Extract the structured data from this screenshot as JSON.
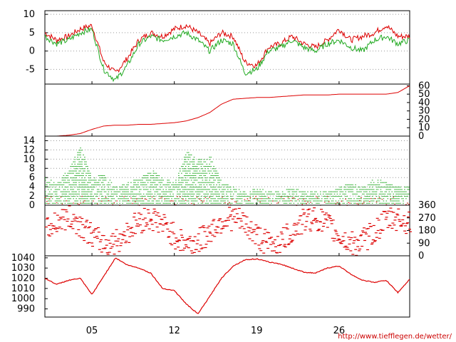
{
  "source_url": "http://www.tiefflegen.de/wetter/",
  "colors": {
    "red": "#dd0000",
    "green": "#22aa22",
    "grid": "#999999",
    "axis": "#000000"
  },
  "chart_data": [
    {
      "type": "line",
      "x_days": [
        0,
        1,
        2,
        3,
        4,
        5,
        6,
        7,
        8,
        9,
        10,
        11,
        12,
        13,
        14,
        15,
        16,
        17,
        18,
        19,
        20,
        21,
        22,
        23,
        24,
        25,
        26,
        27,
        28,
        29,
        30,
        31
      ],
      "ylim": [
        -9,
        11
      ],
      "yticks": [
        "10",
        "5",
        "0",
        "-5"
      ],
      "series": [
        {
          "color": "red",
          "values": [
            5,
            3,
            4,
            6,
            7,
            -3,
            -6,
            -2,
            3,
            5,
            4,
            6,
            7,
            5,
            2,
            5,
            4,
            -3,
            -4,
            1,
            2,
            4,
            2,
            1,
            3,
            6,
            3,
            4,
            5,
            7,
            4,
            4
          ]
        },
        {
          "color": "green",
          "values": [
            4,
            2,
            3,
            5,
            6,
            -5,
            -8,
            -4,
            2,
            4,
            3,
            4,
            5,
            3,
            0,
            3,
            2,
            -6,
            -5,
            0,
            1,
            3,
            1,
            0,
            2,
            3,
            1,
            0,
            3,
            4,
            2,
            3
          ]
        }
      ]
    },
    {
      "type": "area",
      "ylim": [
        0,
        62
      ],
      "yticks": [
        "60",
        "50",
        "40",
        "30",
        "20",
        "10",
        "0"
      ],
      "series": [
        {
          "color": "red",
          "values": [
            0,
            0,
            1,
            3,
            8,
            12,
            13,
            13,
            14,
            14,
            15,
            16,
            18,
            22,
            28,
            38,
            44,
            45,
            46,
            46,
            47,
            48,
            49,
            49,
            49,
            50,
            50,
            50,
            50,
            50,
            52,
            60
          ]
        }
      ]
    },
    {
      "type": "scatter",
      "ylim": [
        0,
        15
      ],
      "yticks": [
        "14",
        "12",
        "10",
        "8",
        "6",
        "4",
        "2",
        "0"
      ],
      "series": [
        {
          "color": "green",
          "name": "",
          "peaks": [
            6,
            5,
            8,
            13,
            6,
            7,
            4,
            5,
            6,
            8,
            6,
            5,
            12,
            10,
            11,
            5,
            4,
            3,
            4,
            3,
            3,
            4,
            3,
            3,
            3,
            4,
            5,
            4,
            6,
            5,
            4,
            4
          ]
        }
      ]
    },
    {
      "type": "scatter",
      "ylim": [
        0,
        360
      ],
      "yticks": [
        "360",
        "270",
        "180",
        "90",
        "0"
      ],
      "series": [
        {
          "color": "red"
        }
      ]
    },
    {
      "type": "line",
      "ylim": [
        982,
        1042
      ],
      "yticks": [
        "1040",
        "1030",
        "1020",
        "1010",
        "1000",
        "990"
      ],
      "xticks": [
        "05",
        "12",
        "19",
        "26"
      ],
      "xtick_days": [
        4,
        11,
        18,
        25
      ],
      "series": [
        {
          "color": "red",
          "values": [
            1020,
            1014,
            1018,
            1020,
            1004,
            1022,
            1040,
            1033,
            1030,
            1025,
            1010,
            1008,
            995,
            985,
            1002,
            1020,
            1032,
            1038,
            1039,
            1036,
            1034,
            1030,
            1026,
            1025,
            1030,
            1032,
            1024,
            1018,
            1016,
            1018,
            1006,
            1019
          ]
        }
      ]
    }
  ]
}
